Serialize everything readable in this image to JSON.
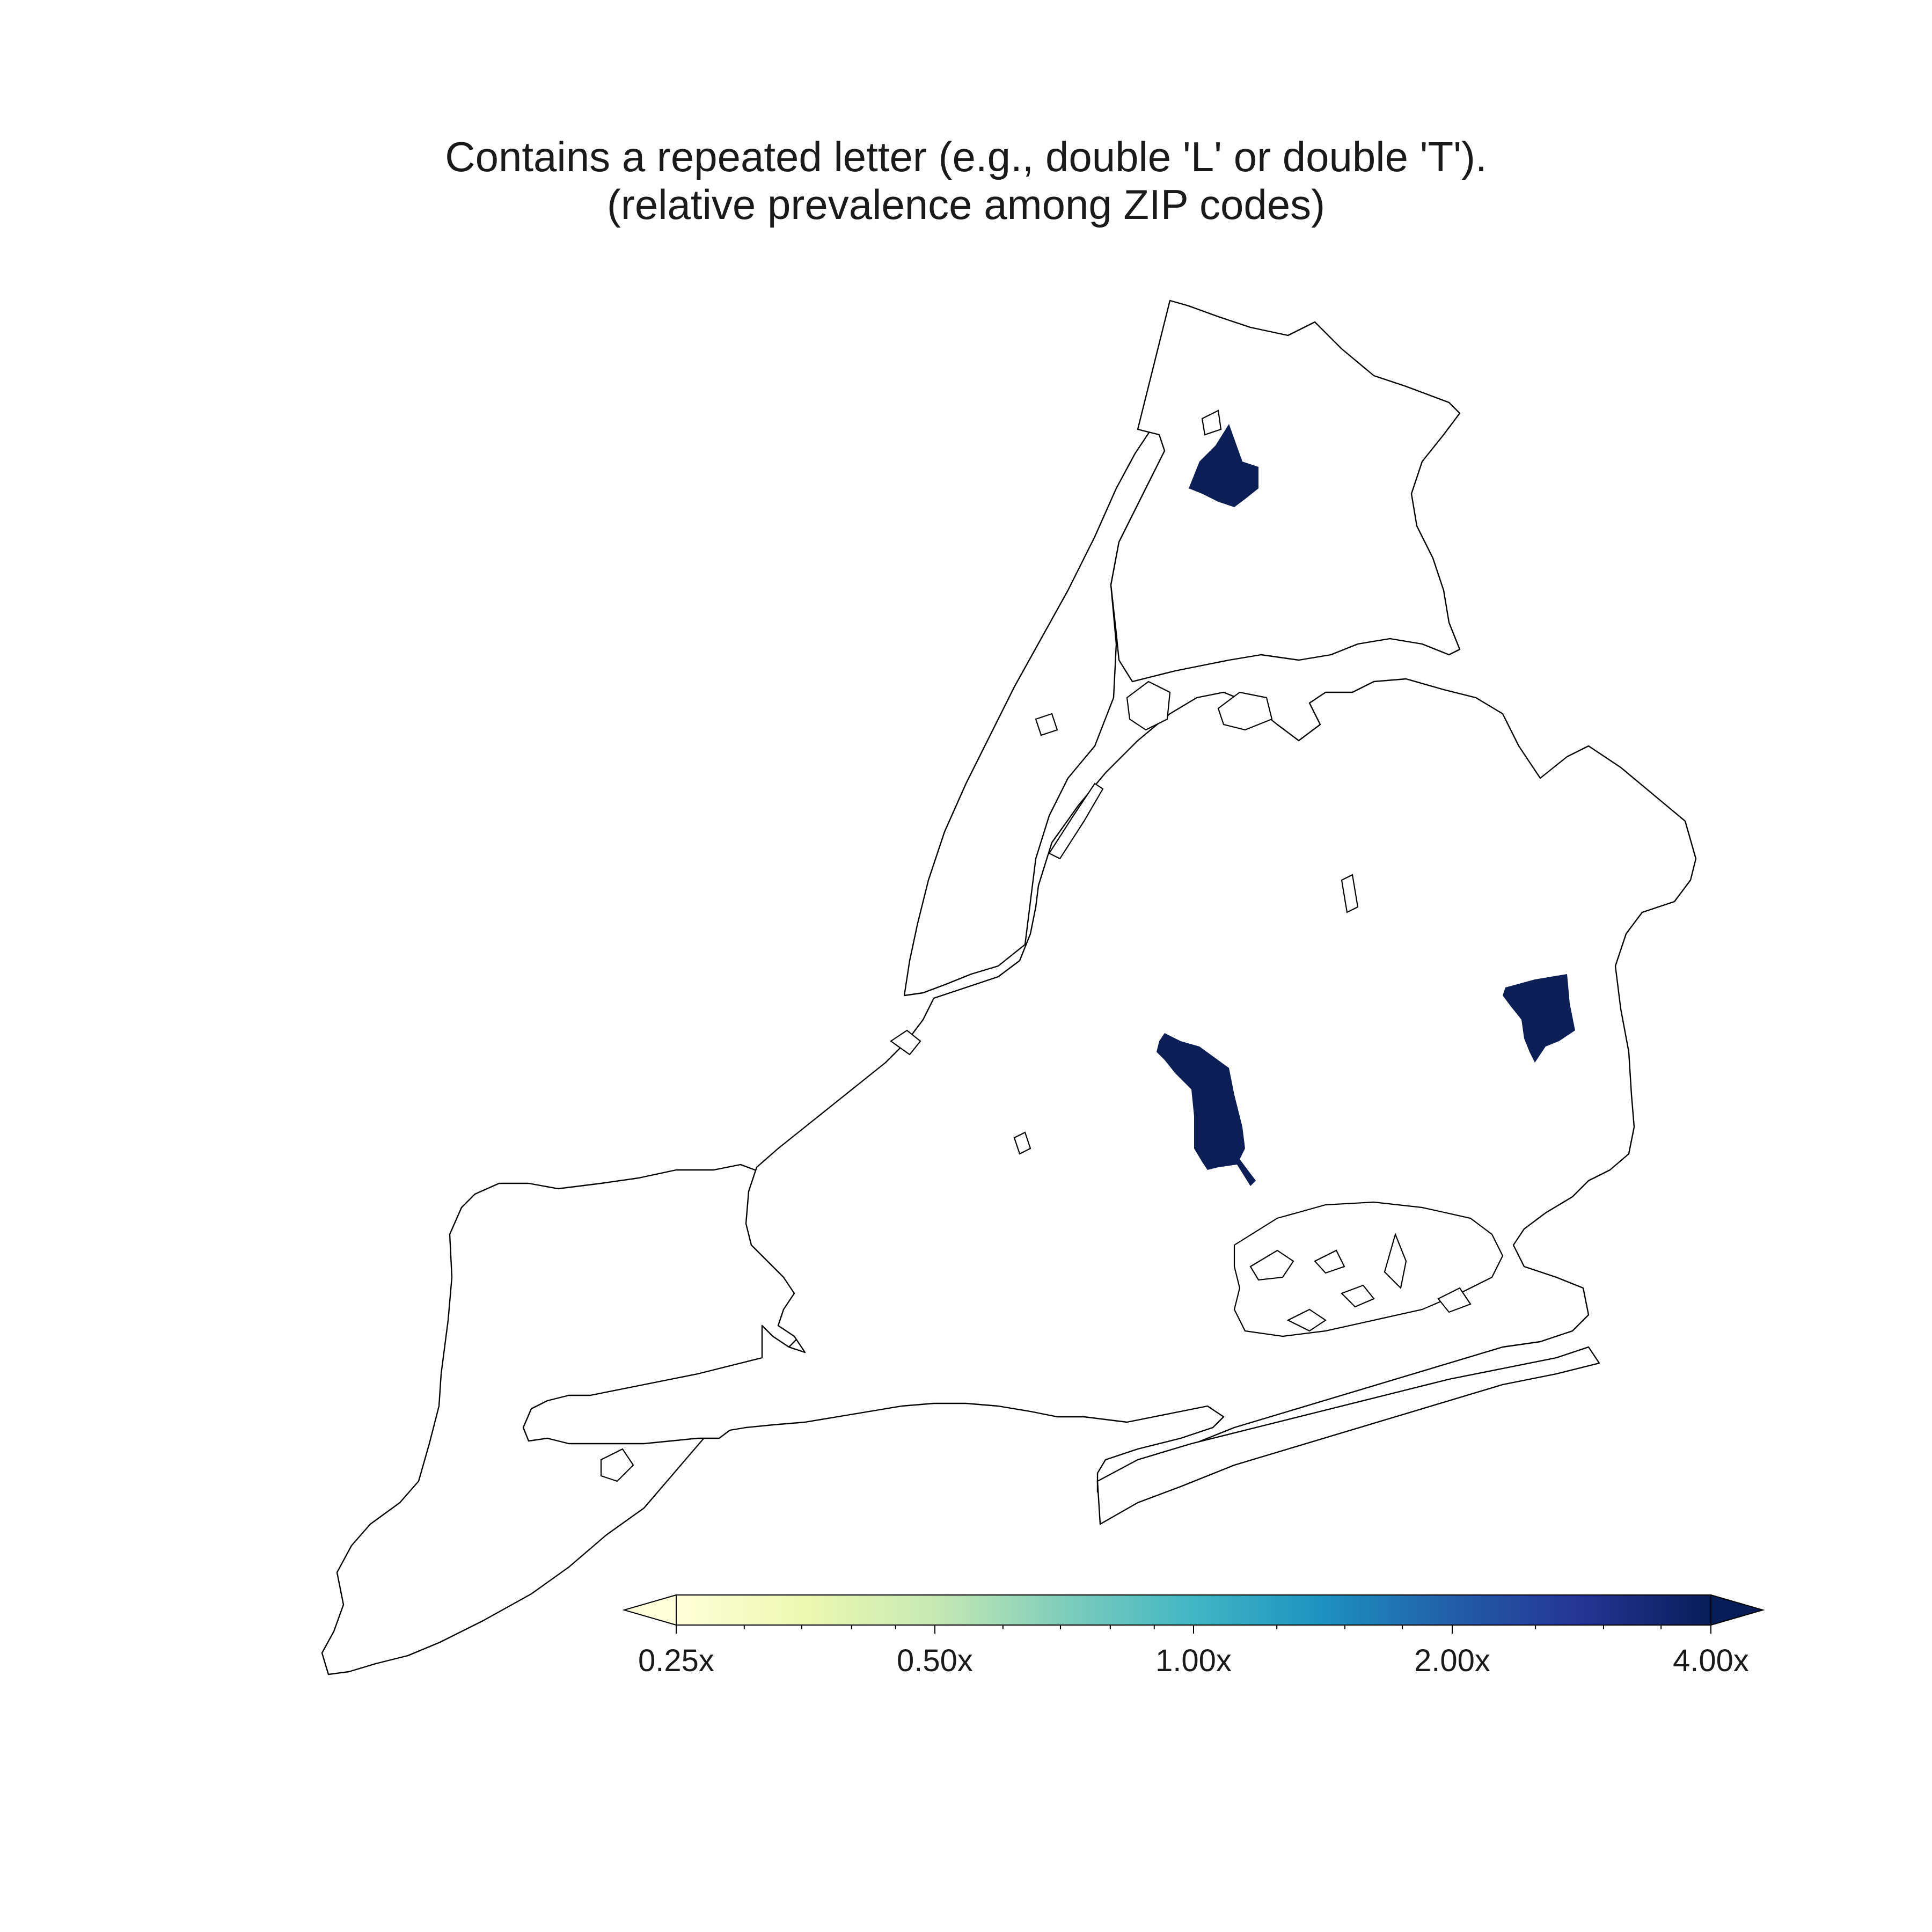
{
  "title": {
    "line1": "Contains a repeated letter (e.g., double 'L' or double 'T').",
    "line2": "(relative prevalence among ZIP codes)"
  },
  "map": {
    "region": "New York City ZIP codes",
    "highlight_color": "#0b1f56",
    "outline_color": "#000000",
    "background_color": "#ffffff",
    "highlighted_zips": [
      {
        "area": "Bronx",
        "value": 4.0
      },
      {
        "area": "Brooklyn",
        "value": 4.0
      },
      {
        "area": "Queens",
        "value": 4.0
      }
    ]
  },
  "colorbar": {
    "type": "log",
    "colormap": "YlGnBu",
    "min": 0.25,
    "max": 4.0,
    "extend": "both",
    "stops": [
      "#ffffd9",
      "#edf8b1",
      "#c7e9b4",
      "#7fcdbb",
      "#41b6c4",
      "#1d91c0",
      "#225ea8",
      "#253494",
      "#081d58"
    ],
    "ticks": [
      {
        "value": 0.25,
        "label": "0.25x"
      },
      {
        "value": 0.5,
        "label": "0.50x"
      },
      {
        "value": 1.0,
        "label": "1.00x"
      },
      {
        "value": 2.0,
        "label": "2.00x"
      },
      {
        "value": 4.0,
        "label": "4.00x"
      }
    ]
  }
}
